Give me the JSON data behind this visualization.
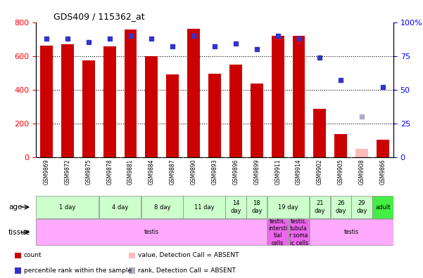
{
  "title": "GDS409 / 115362_at",
  "samples": [
    "GSM9869",
    "GSM9872",
    "GSM9875",
    "GSM9878",
    "GSM9881",
    "GSM9884",
    "GSM9887",
    "GSM9890",
    "GSM9893",
    "GSM9896",
    "GSM9899",
    "GSM9911",
    "GSM9914",
    "GSM9902",
    "GSM9905",
    "GSM9908",
    "GSM9866"
  ],
  "counts": [
    660,
    670,
    575,
    655,
    755,
    600,
    490,
    760,
    495,
    550,
    435,
    720,
    720,
    285,
    135,
    50,
    105
  ],
  "absent_count": [
    false,
    false,
    false,
    false,
    false,
    false,
    false,
    false,
    false,
    false,
    false,
    false,
    false,
    false,
    false,
    true,
    false
  ],
  "percentile_ranks": [
    88,
    88,
    85,
    88,
    90,
    88,
    82,
    90,
    82,
    84,
    80,
    90,
    88,
    74,
    57,
    30,
    52
  ],
  "absent_rank": [
    false,
    false,
    false,
    false,
    false,
    false,
    false,
    false,
    false,
    false,
    false,
    false,
    false,
    false,
    false,
    true,
    false
  ],
  "ylim_left": [
    0,
    800
  ],
  "ylim_right": [
    0,
    100
  ],
  "yticks_left": [
    0,
    200,
    400,
    600,
    800
  ],
  "yticks_right": [
    0,
    25,
    50,
    75,
    100
  ],
  "bar_color": "#cc0000",
  "dot_color": "#3333cc",
  "absent_bar_color": "#ffbbbb",
  "absent_dot_color": "#aaaacc",
  "age_groups": [
    {
      "label": "1 day",
      "start": 0,
      "end": 3,
      "color": "#ccffcc"
    },
    {
      "label": "4 day",
      "start": 3,
      "end": 5,
      "color": "#ccffcc"
    },
    {
      "label": "8 day",
      "start": 5,
      "end": 7,
      "color": "#ccffcc"
    },
    {
      "label": "11 day",
      "start": 7,
      "end": 9,
      "color": "#ccffcc"
    },
    {
      "label": "14\nday",
      "start": 9,
      "end": 10,
      "color": "#ccffcc"
    },
    {
      "label": "18\nday",
      "start": 10,
      "end": 11,
      "color": "#ccffcc"
    },
    {
      "label": "19 day",
      "start": 11,
      "end": 13,
      "color": "#ccffcc"
    },
    {
      "label": "21\nday",
      "start": 13,
      "end": 14,
      "color": "#ccffcc"
    },
    {
      "label": "26\nday",
      "start": 14,
      "end": 15,
      "color": "#ccffcc"
    },
    {
      "label": "29\nday",
      "start": 15,
      "end": 16,
      "color": "#ccffcc"
    },
    {
      "label": "adult",
      "start": 16,
      "end": 17,
      "color": "#44ee44"
    }
  ],
  "tissue_groups": [
    {
      "label": "testis",
      "start": 0,
      "end": 11,
      "color": "#ffaaff"
    },
    {
      "label": "testis,\nintersti\ntial\ncells",
      "start": 11,
      "end": 12,
      "color": "#ee66ee"
    },
    {
      "label": "testis,\ntubula\nr soma\nic cells",
      "start": 12,
      "end": 13,
      "color": "#ee66ee"
    },
    {
      "label": "testis",
      "start": 13,
      "end": 17,
      "color": "#ffaaff"
    }
  ],
  "legend_items": [
    {
      "label": "count",
      "color": "#cc0000"
    },
    {
      "label": "percentile rank within the sample",
      "color": "#3333cc"
    },
    {
      "label": "value, Detection Call = ABSENT",
      "color": "#ffbbbb"
    },
    {
      "label": "rank, Detection Call = ABSENT",
      "color": "#aaaacc"
    }
  ]
}
